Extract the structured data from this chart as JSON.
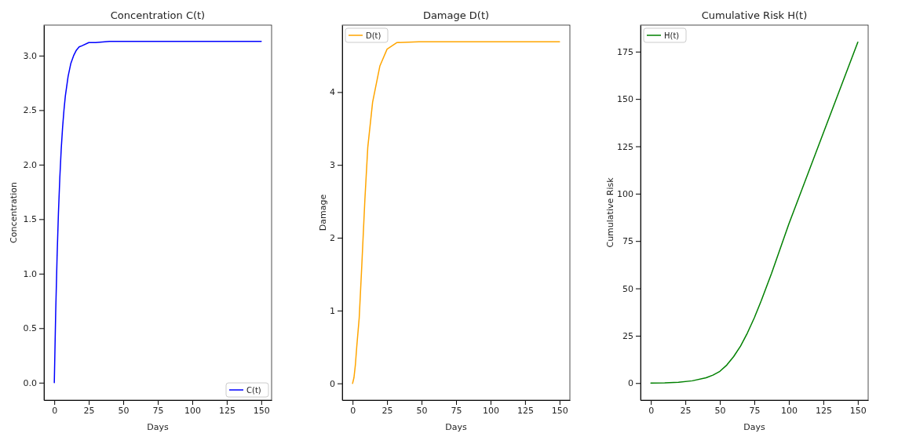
{
  "chart_data": [
    {
      "type": "line",
      "title": "Concentration C(t)",
      "xlabel": "Days",
      "ylabel": "Concentration",
      "xlim": [
        -7.5,
        157.5
      ],
      "xticks": [
        0,
        25,
        50,
        75,
        100,
        125,
        150
      ],
      "ylim": [
        -0.16,
        3.28
      ],
      "yticks": [
        {
          "value": 0,
          "label": "0.0"
        },
        {
          "value": 0.5,
          "label": "0.5"
        },
        {
          "value": 1,
          "label": "1.0"
        },
        {
          "value": 1.5,
          "label": "1.5"
        },
        {
          "value": 2,
          "label": "2.0"
        },
        {
          "value": 2.5,
          "label": "2.5"
        },
        {
          "value": 3,
          "label": "3.0"
        }
      ],
      "legend": "bottom right",
      "x": [
        0,
        1,
        2,
        3,
        4,
        5,
        6,
        7,
        8,
        10,
        12,
        14,
        16,
        18,
        20,
        25,
        30,
        40,
        150
      ],
      "series": [
        {
          "name": "C(t)",
          "color": "#0000ff",
          "values": [
            0,
            0.64,
            1.15,
            1.56,
            1.88,
            2.14,
            2.34,
            2.5,
            2.63,
            2.81,
            2.93,
            3.0,
            3.05,
            3.08,
            3.09,
            3.12,
            3.12,
            3.13,
            3.13
          ]
        }
      ]
    },
    {
      "type": "line",
      "title": "Damage D(t)",
      "xlabel": "Days",
      "ylabel": "Damage",
      "xlim": [
        -7.5,
        157.5
      ],
      "xticks": [
        0,
        25,
        50,
        75,
        100,
        125,
        150
      ],
      "ylim": [
        -0.23,
        4.92
      ],
      "yticks": [
        0,
        1,
        2,
        3,
        4
      ],
      "legend": "top left",
      "x": [
        0,
        1,
        2,
        3,
        4.8,
        6.6,
        8.9,
        11,
        14.5,
        19.8,
        25,
        32,
        48,
        150
      ],
      "series": [
        {
          "name": "D(t)",
          "color": "#ffa500",
          "values": [
            0,
            0.08,
            0.25,
            0.5,
            0.9,
            1.59,
            2.52,
            3.24,
            3.86,
            4.36,
            4.59,
            4.68,
            4.69,
            4.69
          ]
        }
      ]
    },
    {
      "type": "line",
      "title": "Cumulative Risk H(t)",
      "xlabel": "Days",
      "ylabel": "Cumulative Risk",
      "xlim": [
        -7.5,
        157.5
      ],
      "xticks": [
        0,
        25,
        50,
        75,
        100,
        125,
        150
      ],
      "ylim": [
        -9,
        189
      ],
      "yticks": [
        0,
        25,
        50,
        75,
        100,
        125,
        150,
        175
      ],
      "legend": "top left",
      "x": [
        0,
        10,
        20,
        30,
        40,
        45,
        50,
        55,
        60,
        65,
        70,
        75,
        80,
        87.5,
        100,
        125,
        150
      ],
      "series": [
        {
          "name": "H(t)",
          "color": "#008000",
          "values": [
            0,
            0.1,
            0.4,
            1.2,
            2.8,
            4.2,
            6.2,
            9.5,
            14,
            19.5,
            26.5,
            34.5,
            43.5,
            58,
            84,
            132,
            180
          ]
        }
      ]
    }
  ]
}
